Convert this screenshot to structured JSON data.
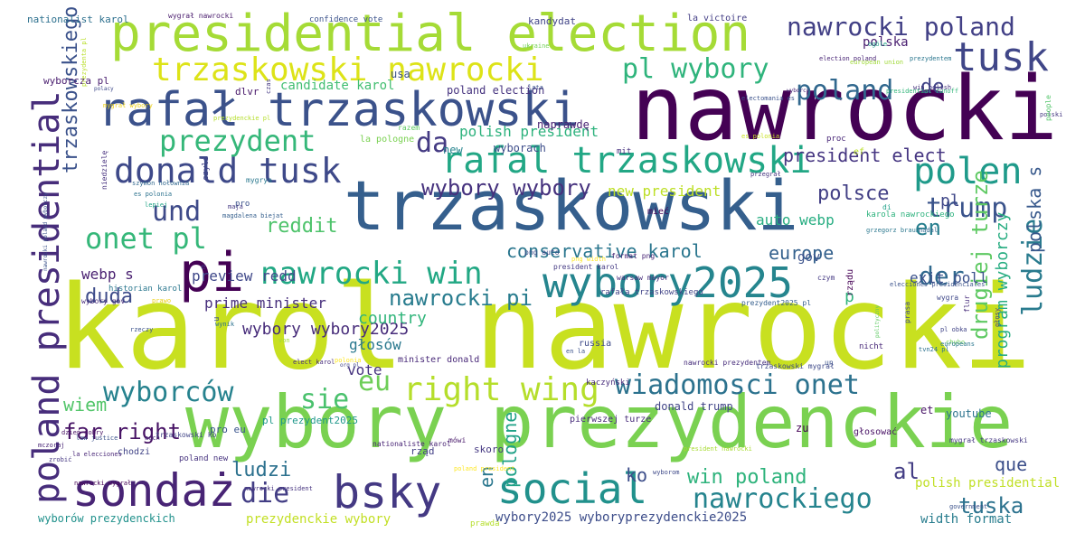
{
  "words": [
    {
      "text": "karol nawrocki",
      "color": "#c8e020"
    },
    {
      "text": "nawrocki",
      "color": "#440154"
    },
    {
      "text": "wybory prezydenckie",
      "color": "#7ad151"
    },
    {
      "text": "trzaskowski",
      "color": "#355f8d"
    },
    {
      "text": "presidential election",
      "color": "#a5db36"
    },
    {
      "text": "rafał trzaskowski",
      "color": "#3b528b"
    },
    {
      "text": "pi",
      "color": "#440154"
    },
    {
      "text": "sondaż",
      "color": "#482475"
    },
    {
      "text": "bsky",
      "color": "#443983"
    },
    {
      "text": "social",
      "color": "#21918c"
    },
    {
      "text": "wybory2025",
      "color": "#25858e"
    },
    {
      "text": "donald tusk",
      "color": "#3e4989"
    },
    {
      "text": "rafal trzaskowski",
      "color": "#22a785"
    },
    {
      "text": "tusk",
      "color": "#404688"
    },
    {
      "text": "poland presidential",
      "color": "#472d7b"
    },
    {
      "text": "trzaskowski nawrocki",
      "color": "#dde318"
    },
    {
      "text": "prezydent",
      "color": "#35b779"
    },
    {
      "text": "nawrocki poland",
      "color": "#424086"
    },
    {
      "text": "pl wybory",
      "color": "#2fb47c"
    },
    {
      "text": "poland",
      "color": "#31688e"
    },
    {
      "text": "polen",
      "color": "#1f9a8a"
    },
    {
      "text": "trump",
      "color": "#3a538b"
    },
    {
      "text": "wiadomosci onet",
      "color": "#2c728e"
    },
    {
      "text": "right wing",
      "color": "#b5de2b"
    },
    {
      "text": "nawrocki win",
      "color": "#22a884"
    },
    {
      "text": "onet pl",
      "color": "#35b779"
    },
    {
      "text": "wyborców",
      "color": "#26828e"
    },
    {
      "text": "nawrockiego",
      "color": "#25848e"
    },
    {
      "text": "die",
      "color": "#433e85"
    },
    {
      "text": "sie",
      "color": "#4ac16d"
    },
    {
      "text": "da",
      "color": "#443a83"
    },
    {
      "text": "und",
      "color": "#3e4a89"
    },
    {
      "text": "eu",
      "color": "#6ece58"
    },
    {
      "text": "ludzie",
      "color": "#297b8e"
    },
    {
      "text": "trzaskowskiego",
      "color": "#3b528b"
    },
    {
      "text": "drugiej turze",
      "color": "#5ec962"
    },
    {
      "text": "polska s",
      "color": "#38598c"
    },
    {
      "text": "der",
      "color": "#30698e"
    },
    {
      "text": "en",
      "color": "#277f8e"
    },
    {
      "text": "de",
      "color": "#404387"
    },
    {
      "text": "pl",
      "color": "#3f4788"
    },
    {
      "text": "polsce",
      "color": "#423f85"
    },
    {
      "text": "president elect",
      "color": "#453581"
    },
    {
      "text": "wybory wybory",
      "color": "#46327e"
    },
    {
      "text": "reddit",
      "color": "#4ec36b"
    },
    {
      "text": "wybory wybory2025",
      "color": "#472c7a"
    },
    {
      "text": "conservative karol",
      "color": "#2a768e"
    },
    {
      "text": "europe",
      "color": "#34618d"
    },
    {
      "text": "nawrocki pi",
      "color": "#287c8e"
    },
    {
      "text": "duda",
      "color": "#3e4c8a"
    },
    {
      "text": "far right",
      "color": "#471365"
    },
    {
      "text": "ludzi",
      "color": "#2c718e"
    },
    {
      "text": "wiem",
      "color": "#52c569"
    },
    {
      "text": "win poland",
      "color": "#2eb37c"
    },
    {
      "text": "tuska",
      "color": "#2c728e"
    },
    {
      "text": "al",
      "color": "#433d84"
    },
    {
      "text": "que",
      "color": "#3c4f8a"
    },
    {
      "text": "ko",
      "color": "#3d4e8a"
    },
    {
      "text": "pologne",
      "color": "#1fa187"
    },
    {
      "text": "en",
      "color": "#2a778e"
    },
    {
      "text": "program wyborczy",
      "color": "#27ad81"
    },
    {
      "text": "country",
      "color": "#31b57b"
    },
    {
      "text": "głosów",
      "color": "#2a788e"
    },
    {
      "text": "vote",
      "color": "#46337f"
    },
    {
      "text": "prime minister",
      "color": "#472f7d"
    },
    {
      "text": "preview redd",
      "color": "#3f4889"
    },
    {
      "text": "webp s",
      "color": "#481f70"
    },
    {
      "text": "exit poll",
      "color": "#3b518b"
    },
    {
      "text": "auto webp",
      "color": "#26ad81"
    },
    {
      "text": "new president",
      "color": "#bddf26"
    },
    {
      "text": "polish president",
      "color": "#2db27d"
    },
    {
      "text": "p",
      "color": "#2fb47c"
    },
    {
      "text": "polska",
      "color": "#481d6f"
    },
    {
      "text": "gov",
      "color": "#3b528b"
    },
    {
      "text": "candidate karol",
      "color": "#42be71"
    },
    {
      "text": "wyborcza pl",
      "color": "#481c6e"
    },
    {
      "text": "polish presidential",
      "color": "#c0df25"
    },
    {
      "text": "width format",
      "color": "#287d8e"
    },
    {
      "text": "prezydenckie wybory",
      "color": "#c2df23"
    },
    {
      "text": "wyborów prezydenckich",
      "color": "#21918c"
    },
    {
      "text": "wybory2025 wyboryprezydenckie2025",
      "color": "#3d4d8a"
    },
    {
      "text": "donald trump",
      "color": "#414487"
    },
    {
      "text": "pierwszej turze",
      "color": "#472c7a"
    },
    {
      "text": "zu",
      "color": "#440154"
    },
    {
      "text": "et",
      "color": "#481467"
    },
    {
      "text": "chodzi",
      "color": "#414487"
    },
    {
      "text": "poland new",
      "color": "#46327e"
    },
    {
      "text": "pl prezydent2025",
      "color": "#1f988b"
    },
    {
      "text": "pro eu",
      "color": "#3a548c"
    },
    {
      "text": "minister donald",
      "color": "#482878"
    },
    {
      "text": "russia",
      "color": "#3e4a89"
    },
    {
      "text": "kaczyński",
      "color": "#472d7b"
    },
    {
      "text": "youtube",
      "color": "#2c738e"
    },
    {
      "text": "rząd",
      "color": "#423f85"
    },
    {
      "text": "skoro",
      "color": "#453882"
    },
    {
      "text": "głosować",
      "color": "#471164"
    },
    {
      "text": "naprawdę",
      "color": "#482173"
    },
    {
      "text": "wyborach",
      "color": "#3d4d8a"
    },
    {
      "text": "poland election",
      "color": "#46337f"
    },
    {
      "text": "usa",
      "color": "#3b518b"
    },
    {
      "text": "dlvr",
      "color": "#48186a"
    },
    {
      "text": "mieć",
      "color": "#440154"
    },
    {
      "text": "la pologne",
      "color": "#7ad151"
    },
    {
      "text": "new",
      "color": "#25848e"
    },
    {
      "text": "mit",
      "color": "#46307e"
    },
    {
      "text": "kandydat",
      "color": "#414487"
    },
    {
      "text": "confidence vote",
      "color": "#3b528b"
    },
    {
      "text": "la victoire",
      "color": "#433e85"
    },
    {
      "text": "nationalist karol",
      "color": "#2d708e"
    },
    {
      "text": "wygrał nawrocki",
      "color": "#481a6c"
    },
    {
      "text": "ukraine",
      "color": "#73d056"
    },
    {
      "text": "ogóle",
      "color": "#20a386"
    },
    {
      "text": "prezydentem",
      "color": "#2a768e"
    },
    {
      "text": "election poland",
      "color": "#482475"
    },
    {
      "text": "electomania es",
      "color": "#3b528b"
    },
    {
      "text": "presidential runoff",
      "color": "#32b67a"
    },
    {
      "text": "win polish",
      "color": "#46337f"
    },
    {
      "text": "polski",
      "color": "#453781"
    },
    {
      "text": "people",
      "color": "#52c569"
    },
    {
      "text": "wyborcy",
      "color": "#482576"
    },
    {
      "text": "lata",
      "color": "#3b528b"
    },
    {
      "text": "razem",
      "color": "#5ec962"
    },
    {
      "text": "proc",
      "color": "#482677"
    },
    {
      "text": "ef",
      "color": "#b8de29"
    },
    {
      "text": "di",
      "color": "#1fa088"
    },
    {
      "text": "nadal",
      "color": "#31688e"
    },
    {
      "text": "grzegorz braun",
      "color": "#2a778e"
    },
    {
      "text": "karola nawrockiego",
      "color": "#2db27d"
    },
    {
      "text": "format png",
      "color": "#482475"
    },
    {
      "text": "president karol",
      "color": "#443a83"
    },
    {
      "text": "rafała trzaskowskiego",
      "color": "#414487"
    },
    {
      "text": "prezydent2025 pl",
      "color": "#355f8d"
    },
    {
      "text": "wygra",
      "color": "#3f4889"
    },
    {
      "text": "rządu",
      "color": "#440154"
    },
    {
      "text": "elecciones presidenciales",
      "color": "#3b528b"
    },
    {
      "text": "pl obka",
      "color": "#414487"
    },
    {
      "text": "chybo",
      "color": "#6ece58"
    },
    {
      "text": "tvn24 pl",
      "color": "#2c728e"
    },
    {
      "text": "flur",
      "color": "#472d7b"
    },
    {
      "text": "głosy",
      "color": "#443983"
    },
    {
      "text": "prasa",
      "color": "#3e4989"
    },
    {
      "text": "nicht",
      "color": "#482878"
    },
    {
      "text": "mygrał trzaskowski",
      "color": "#453882"
    },
    {
      "text": "government",
      "color": "#3b528b"
    },
    {
      "text": "nationaliste karol",
      "color": "#482475"
    },
    {
      "text": "poland president",
      "color": "#fde725"
    },
    {
      "text": "wyborom",
      "color": "#3e4989"
    },
    {
      "text": "president nawrocki",
      "color": "#a8db34"
    },
    {
      "text": "mówi",
      "color": "#48186a"
    },
    {
      "text": "historian karol",
      "color": "#2a778e"
    },
    {
      "text": "wybory gov",
      "color": "#472d7b"
    },
    {
      "text": "rzeczy",
      "color": "#3b528b"
    },
    {
      "text": "mczoraj",
      "color": "#482475"
    },
    {
      "text": "dzień dobry",
      "color": "#471164"
    },
    {
      "text": "auch",
      "color": "#482878"
    },
    {
      "text": "trzaskowski ko",
      "color": "#414487"
    },
    {
      "text": "law justice",
      "color": "#3b528b"
    },
    {
      "text": "la elecciones",
      "color": "#482677"
    },
    {
      "text": "zrobić",
      "color": "#453781"
    },
    {
      "text": "nawrocki wygrał",
      "color": "#440154"
    },
    {
      "text": "nawrocki president",
      "color": "#46337f"
    },
    {
      "text": "pro",
      "color": "#3b528b"
    },
    {
      "text": "png auto",
      "color": "#3e4989"
    },
    {
      "text": "png width",
      "color": "#fde725"
    },
    {
      "text": "warsaw mayor",
      "color": "#472d7b"
    },
    {
      "text": "maja",
      "color": "#443983"
    },
    {
      "text": "magdalena biejat",
      "color": "#355f8d"
    },
    {
      "text": "es polonia",
      "color": "#2c728e"
    },
    {
      "text": "lepiej",
      "color": "#20a386"
    },
    {
      "text": "szymon hołownia",
      "color": "#31688e"
    },
    {
      "text": "niedzielę",
      "color": "#46307e"
    },
    {
      "text": "mygrya",
      "color": "#2a788e"
    },
    {
      "text": "czyli",
      "color": "#414487"
    },
    {
      "text": "e",
      "color": "#443a83"
    },
    {
      "text": "u",
      "color": "#3b528b"
    },
    {
      "text": "wynik",
      "color": "#2c728e"
    },
    {
      "text": "von",
      "color": "#a0da39"
    },
    {
      "text": "org pl",
      "color": "#414487"
    },
    {
      "text": "elect karol",
      "color": "#472d7b"
    },
    {
      "text": "un",
      "color": "#3b528b"
    },
    {
      "text": "czym",
      "color": "#443983"
    },
    {
      "text": "europeans",
      "color": "#2a778e"
    },
    {
      "text": "polityczny",
      "color": "#5ec962"
    },
    {
      "text": "nawrocki poland wyborczy",
      "color": "#3b528b"
    },
    {
      "text": "polacy",
      "color": "#3e4989"
    },
    {
      "text": "prezydenta pl",
      "color": "#b8de29"
    },
    {
      "text": "european union",
      "color": "#a0da39"
    },
    {
      "text": "es polonia",
      "color": "#c8e020"
    },
    {
      "text": "przegrał",
      "color": "#46337f"
    },
    {
      "text": "en la",
      "color": "#3b528b"
    },
    {
      "text": "nawrocki prezydentem",
      "color": "#472d7b"
    },
    {
      "text": "trzaskowski mygrał",
      "color": "#3e4989"
    },
    {
      "text": "mygrał wybory",
      "color": "#ecd018"
    },
    {
      "text": "prezydenckie pl",
      "color": "#b5de2b"
    },
    {
      "text": "prawo",
      "color": "#ecd018"
    },
    {
      "text": "prawda",
      "color": "#b5de2b"
    },
    {
      "text": "polonia",
      "color": "#fde725"
    },
    {
      "text": "czas",
      "color": "#443983"
    },
    {
      "text": "x",
      "color": "#414487"
    },
    {
      "text": "v",
      "color": "#3b528b"
    },
    {
      "text": "głos",
      "color": "#3b528b"
    },
    {
      "text": "prostu",
      "color": "#46337f"
    }
  ]
}
